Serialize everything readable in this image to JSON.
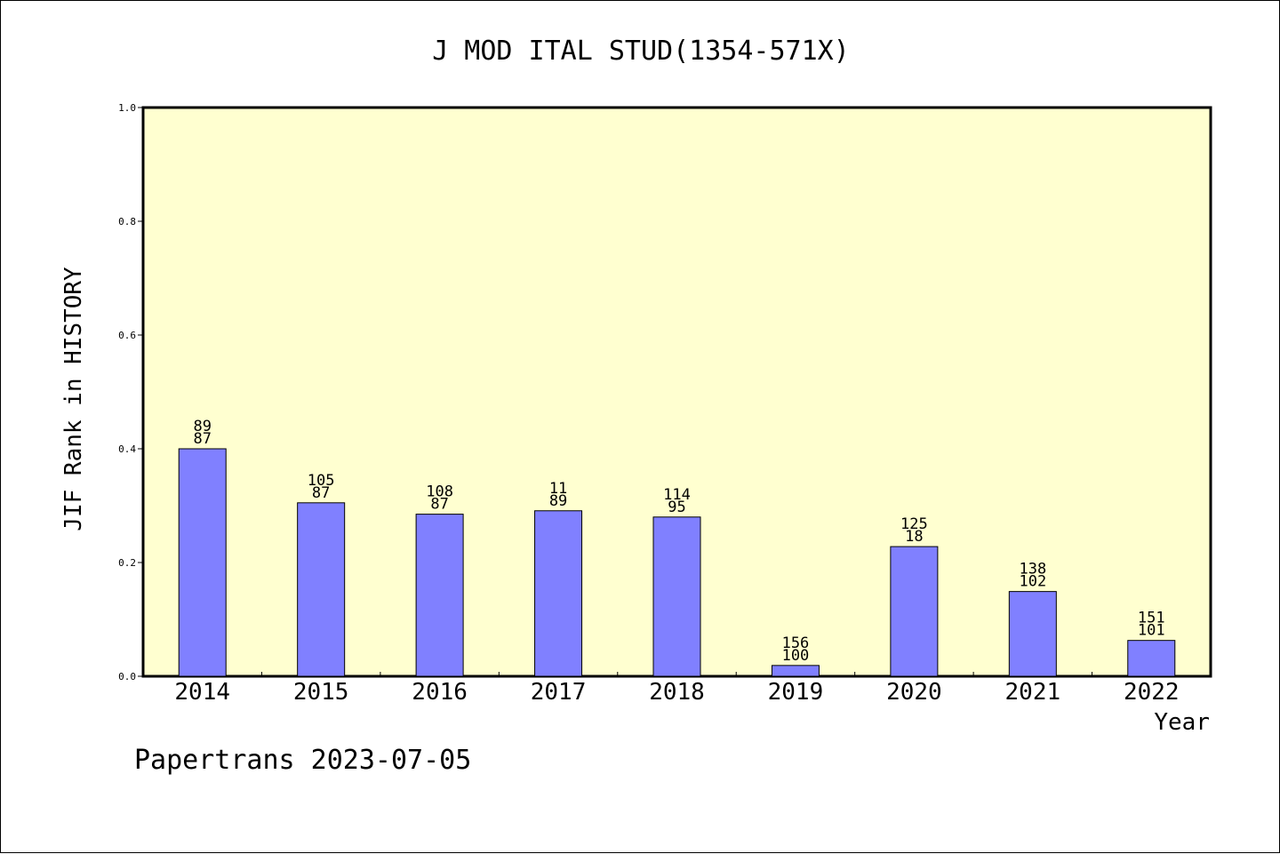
{
  "chart_data": {
    "type": "bar",
    "title": "J MOD ITAL STUD(1354-571X)",
    "xlabel": "Year",
    "ylabel": "JIF Rank in HISTORY",
    "ylim": [
      0,
      1.0
    ],
    "yticks": [
      "0.0",
      "0.2",
      "0.4",
      "0.6",
      "0.8",
      "1.0"
    ],
    "categories": [
      "2014",
      "2015",
      "2016",
      "2017",
      "2018",
      "2019",
      "2020",
      "2021",
      "2022"
    ],
    "values": [
      0.4,
      0.305,
      0.285,
      0.291,
      0.28,
      0.019,
      0.228,
      0.149,
      0.063
    ],
    "labels_top": [
      "89",
      "105",
      "108",
      "11",
      "114",
      "156",
      "125",
      "138",
      "151"
    ],
    "labels_bottom": [
      "87",
      "87",
      "87",
      "89",
      "95",
      "100",
      "18",
      "102",
      "101"
    ],
    "grid": false,
    "colors": {
      "bar": "#8080ff",
      "plot_bg": "#ffffd0",
      "axis": "#000000"
    }
  },
  "footer": "Papertrans 2023-07-05"
}
